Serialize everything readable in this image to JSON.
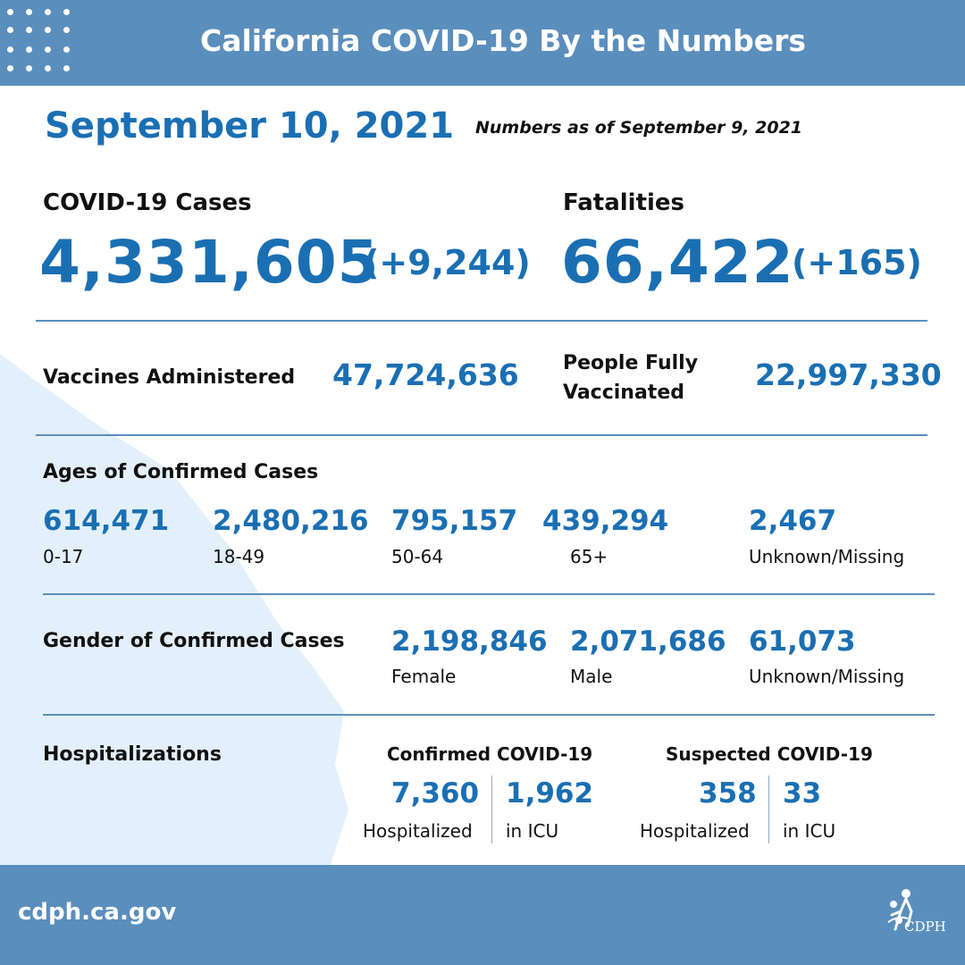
{
  "header": {
    "title": "California COVID-19 By the Numbers"
  },
  "report": {
    "date": "September 10, 2021",
    "as_of": "Numbers as of September 9, 2021"
  },
  "cases": {
    "label": "COVID-19 Cases",
    "total": "4,331,605",
    "change": "(+9,244)"
  },
  "fatalities": {
    "label": "Fatalities",
    "total": "66,422",
    "change": "(+165)"
  },
  "vaccines": {
    "label": "Vaccines Administered",
    "value": "47,724,636"
  },
  "fully_vaccinated": {
    "label_line1": "People Fully",
    "label_line2": "Vaccinated",
    "value": "22,997,330"
  },
  "ages": {
    "label": "Ages of Confirmed Cases",
    "groups": [
      {
        "value": "614,471",
        "label": "0-17"
      },
      {
        "value": "2,480,216",
        "label": "18-49"
      },
      {
        "value": "795,157",
        "label": "50-64"
      },
      {
        "value": "439,294",
        "label": "65+"
      },
      {
        "value": "2,467",
        "label": "Unknown/Missing"
      }
    ]
  },
  "gender": {
    "label": "Gender of Confirmed Cases",
    "groups": [
      {
        "value": "2,198,846",
        "label": "Female"
      },
      {
        "value": "2,071,686",
        "label": "Male"
      },
      {
        "value": "61,073",
        "label": "Unknown/Missing"
      }
    ]
  },
  "hospitalizations": {
    "label": "Hospitalizations",
    "confirmed": {
      "heading": "Confirmed COVID-19",
      "hospitalized": "7,360",
      "hospitalized_label": "Hospitalized",
      "icu": "1,962",
      "icu_label": "in ICU"
    },
    "suspected": {
      "heading": "Suspected COVID-19",
      "hospitalized": "358",
      "hospitalized_label": "Hospitalized",
      "icu": "33",
      "icu_label": "in ICU"
    }
  },
  "footer": {
    "url": "cdph.ca.gov",
    "logo_text": "CDPH",
    "logo_icon": "cdph-logo-icon"
  },
  "colors": {
    "brand_blue": "#5a8ebc",
    "number_blue": "#1a6fb3",
    "map_tint": "#e3f0fb"
  }
}
